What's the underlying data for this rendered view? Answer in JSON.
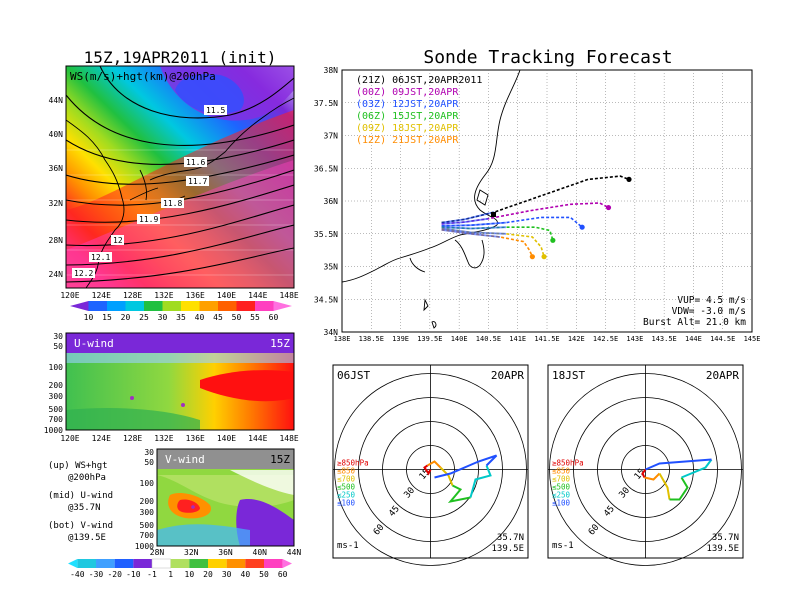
{
  "main_title": "Sonde Tracking Forecast",
  "left_title": "15Z,19APR2011 (init)",
  "top_panel": {
    "label": "WS(m/s)+hgt(km)@200hPa",
    "lat_ticks": [
      "44N",
      "40N",
      "36N",
      "32N",
      "28N",
      "24N"
    ],
    "lon_ticks": [
      "120E",
      "124E",
      "128E",
      "132E",
      "136E",
      "140E",
      "144E",
      "148E"
    ],
    "contour_labels": [
      "11.5",
      "11.6",
      "11.7",
      "11.8",
      "11.9",
      "12",
      "12.1",
      "12.2"
    ],
    "colorbar_ticks": [
      "10",
      "15",
      "20",
      "25",
      "30",
      "35",
      "40",
      "45",
      "50",
      "55",
      "60"
    ]
  },
  "u_panel": {
    "label": "U-wind",
    "time": "15Z",
    "p_ticks": [
      "30",
      "50",
      "100",
      "200",
      "300",
      "500",
      "700",
      "1000"
    ],
    "lon_ticks": [
      "120E",
      "124E",
      "128E",
      "132E",
      "136E",
      "140E",
      "144E",
      "148E"
    ]
  },
  "v_panel": {
    "label": "V-wind",
    "time": "15Z",
    "p_ticks": [
      "30",
      "50",
      "100",
      "200",
      "300",
      "500",
      "700",
      "1000"
    ],
    "lat_ticks": [
      "28N",
      "32N",
      "36N",
      "40N",
      "44N"
    ],
    "colorbar_ticks": [
      "-40",
      "-30",
      "-20",
      "-10",
      "-1",
      "1",
      "10",
      "20",
      "30",
      "40",
      "50",
      "60"
    ]
  },
  "legend_notes": [
    {
      "a": "(up) WS+hgt",
      "b": "@200hPa"
    },
    {
      "a": "(mid) U-wind",
      "b": "@35.7N"
    },
    {
      "a": "(bot) V-wind",
      "b": "@139.5E"
    }
  ],
  "track_map": {
    "lat_ticks": [
      "38N",
      "37.5N",
      "37N",
      "36.5N",
      "36N",
      "35.5N",
      "35N",
      "34.5N",
      "34N"
    ],
    "lon_ticks": [
      "138E",
      "138.5E",
      "139E",
      "139.5E",
      "140E",
      "140.5E",
      "141E",
      "141.5E",
      "142E",
      "142.5E",
      "143E",
      "143.5E",
      "144E",
      "144.5E",
      "145E"
    ],
    "vup": "VUP= 4.5 m/s",
    "vdw": "VDW= -3.0 m/s",
    "burst": "Burst Alt= 21.0 km"
  },
  "hodo_left": {
    "title": "06JST",
    "date": "20APR",
    "lat": "35.7N",
    "lon": "139.5E",
    "units": "ms-1",
    "ring_labels": [
      "15",
      "30",
      "45",
      "60"
    ]
  },
  "hodo_right": {
    "title": "18JST",
    "date": "20APR",
    "lat": "35.7N",
    "lon": "139.5E",
    "units": "ms-1",
    "ring_labels": [
      "15",
      "30",
      "45",
      "60"
    ]
  },
  "pressure_legend": [
    {
      "label": "≥850hPa",
      "color": "#e00000"
    },
    {
      "label": "≤850",
      "color": "#ff8c00"
    },
    {
      "label": "≤700",
      "color": "#e0c000"
    },
    {
      "label": "≤500",
      "color": "#20c020"
    },
    {
      "label": "≤250",
      "color": "#00c8c8"
    },
    {
      "label": "≤100",
      "color": "#2050ff"
    }
  ],
  "chart_data": {
    "type": "line",
    "title": "Sonde Tracking Forecast",
    "xlim": [
      138,
      145
    ],
    "ylim": [
      34,
      38
    ],
    "series": [
      {
        "name": "(21Z) 06JST,20APR2011",
        "color": "#000000",
        "x": [
          139.7,
          140.1,
          140.6,
          141.4,
          142.2,
          142.75,
          142.9
        ],
        "y": [
          35.67,
          35.72,
          35.83,
          36.08,
          36.33,
          36.38,
          36.33
        ]
      },
      {
        "name": "(00Z) 09JST,20APR",
        "color": "#b000b0",
        "x": [
          139.7,
          140.1,
          140.5,
          141.2,
          141.9,
          142.4,
          142.55
        ],
        "y": [
          35.65,
          35.68,
          35.73,
          35.85,
          35.95,
          35.97,
          35.9
        ]
      },
      {
        "name": "(03Z) 12JST,20APR",
        "color": "#2050ff",
        "x": [
          139.7,
          140.2,
          140.8,
          141.4,
          141.9,
          142.1
        ],
        "y": [
          35.62,
          35.63,
          35.67,
          35.75,
          35.75,
          35.6
        ]
      },
      {
        "name": "(06Z) 15JST,20APR",
        "color": "#20c020",
        "x": [
          139.7,
          140.2,
          140.8,
          141.3,
          141.55,
          141.6
        ],
        "y": [
          35.6,
          35.58,
          35.6,
          35.6,
          35.55,
          35.4
        ]
      },
      {
        "name": "(09Z) 18JST,20APR",
        "color": "#e0c000",
        "x": [
          139.7,
          140.2,
          140.8,
          141.25,
          141.4,
          141.45
        ],
        "y": [
          35.58,
          35.52,
          35.5,
          35.45,
          35.3,
          35.15
        ]
      },
      {
        "name": "(12Z) 21JST,20APR",
        "color": "#ff8c00",
        "x": [
          139.7,
          140.2,
          140.7,
          141.1,
          141.2,
          141.25
        ],
        "y": [
          35.56,
          35.5,
          35.45,
          35.38,
          35.25,
          35.15
        ]
      }
    ]
  }
}
